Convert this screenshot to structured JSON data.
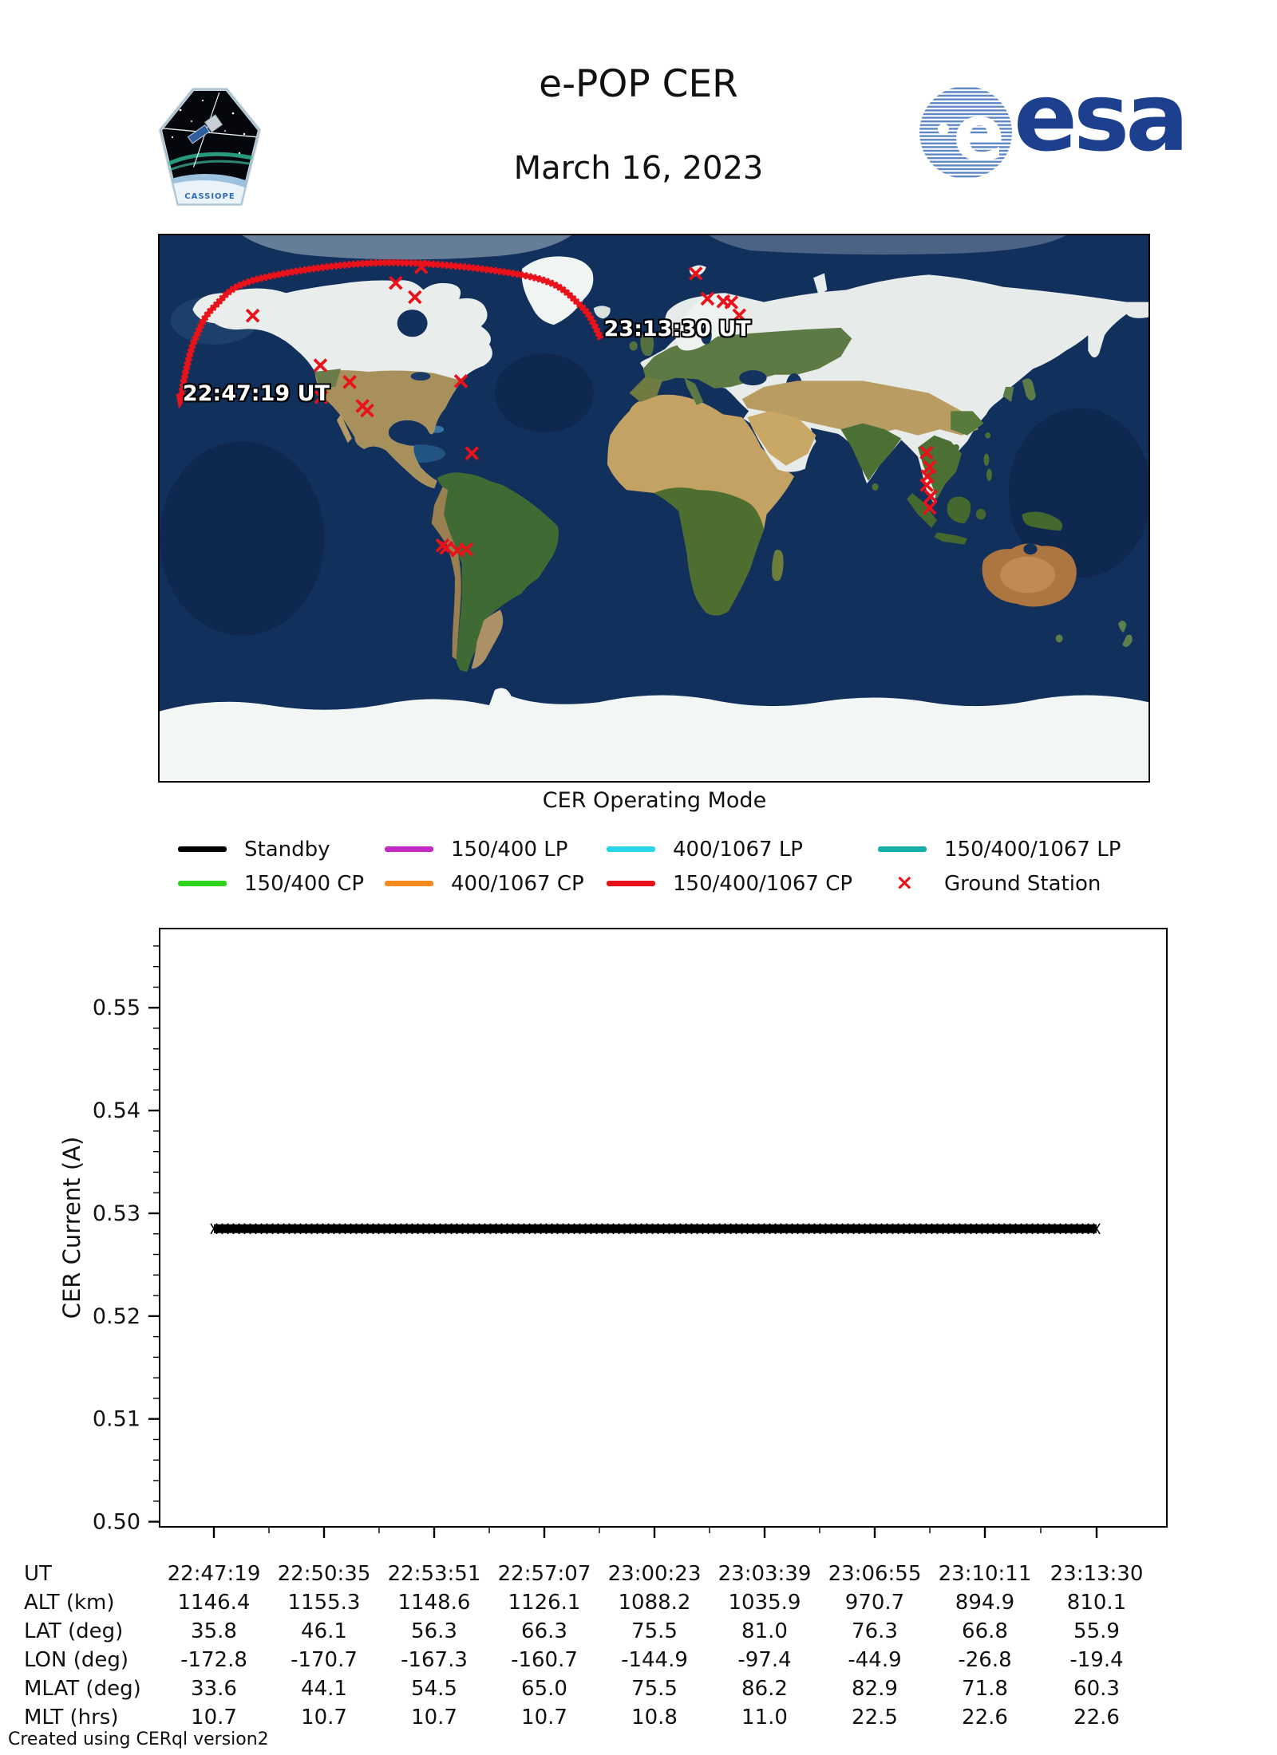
{
  "header": {
    "title": "e-POP CER",
    "date": "March 16, 2023",
    "patch_label": "CASSIOPE",
    "esa_wordmark": "esa"
  },
  "map": {
    "start_time_label": "22:47:19 UT",
    "end_time_label": "23:13:30 UT",
    "track": {
      "color": "#e9121a",
      "points": [
        [
          -172.8,
          35.8
        ],
        [
          -170.7,
          46.1
        ],
        [
          -167.3,
          56.3
        ],
        [
          -160.7,
          66.3
        ],
        [
          -144.9,
          75.5
        ],
        [
          -97.4,
          81.0
        ],
        [
          -44.9,
          76.3
        ],
        [
          -26.8,
          66.8
        ],
        [
          -19.4,
          55.9
        ]
      ]
    },
    "ground_stations": {
      "color": "#e9121a",
      "points": [
        [
          -146.5,
          63.5
        ],
        [
          -121.8,
          47.1
        ],
        [
          -111.1,
          41.6
        ],
        [
          -121.5,
          36.6
        ],
        [
          -106.4,
          33.7
        ],
        [
          -104.7,
          32.2
        ],
        [
          -70.5,
          41.9
        ],
        [
          -66.5,
          18.1
        ],
        [
          -94.3,
          74.3
        ],
        [
          -85.0,
          79.5
        ],
        [
          -87.3,
          69.6
        ],
        [
          -77.2,
          -12.3
        ],
        [
          -75.8,
          -13.1
        ],
        [
          -71.7,
          -13.9
        ],
        [
          -68.5,
          -13.6
        ],
        [
          15.2,
          77.4
        ],
        [
          19.5,
          69.1
        ],
        [
          25.3,
          68.2
        ],
        [
          28.2,
          67.9
        ],
        [
          31.1,
          63.6
        ],
        [
          99.5,
          18.3
        ],
        [
          100.6,
          13.6
        ],
        [
          99.8,
          10.5
        ],
        [
          99.5,
          7.6
        ],
        [
          101.0,
          3.9
        ],
        [
          100.6,
          0.1
        ]
      ]
    }
  },
  "legend": {
    "title": "CER Operating Mode",
    "items": [
      {
        "label": "Standby",
        "color": "#000000",
        "type": "line"
      },
      {
        "label": "150/400 LP",
        "color": "#c32ac3",
        "type": "line"
      },
      {
        "label": "400/1067 LP",
        "color": "#2ad5e8",
        "type": "line"
      },
      {
        "label": "150/400/1067 LP",
        "color": "#16afa8",
        "type": "line"
      },
      {
        "label": "150/400 CP",
        "color": "#2ed31b",
        "type": "line"
      },
      {
        "label": "400/1067 CP",
        "color": "#f6891e",
        "type": "line"
      },
      {
        "label": "150/400/1067 CP",
        "color": "#e9121a",
        "type": "line"
      },
      {
        "label": "Ground Station",
        "color": "#e9121a",
        "type": "marker"
      }
    ]
  },
  "chart_data": {
    "type": "scatter",
    "marker": "x",
    "title": "",
    "xlabel": "",
    "ylabel": "CER Current (A)",
    "ylim": [
      0.4995,
      0.5577
    ],
    "yticks": [
      "0.50",
      "0.51",
      "0.52",
      "0.53",
      "0.54",
      "0.55"
    ],
    "ytick_values": [
      0.5,
      0.51,
      0.52,
      0.53,
      0.54,
      0.55
    ],
    "minor_y_step": 0.002,
    "grid": false,
    "x_ticks": [
      "22:47:19",
      "22:50:35",
      "22:53:51",
      "22:57:07",
      "23:00:23",
      "23:03:39",
      "23:06:55",
      "23:10:11",
      "23:13:30"
    ],
    "series": [
      {
        "name": "CER Current",
        "color": "#000000",
        "x_start": "22:47:19",
        "x_end": "23:13:30",
        "y_constant": 0.5285
      }
    ]
  },
  "table": {
    "row_labels": [
      "UT",
      "ALT (km)",
      "LAT (deg)",
      "LON (deg)",
      "MLAT (deg)",
      "MLT (hrs)"
    ],
    "rows": [
      [
        "22:47:19",
        "22:50:35",
        "22:53:51",
        "22:57:07",
        "23:00:23",
        "23:03:39",
        "23:06:55",
        "23:10:11",
        "23:13:30"
      ],
      [
        "1146.4",
        "1155.3",
        "1148.6",
        "1126.1",
        "1088.2",
        "1035.9",
        "970.7",
        "894.9",
        "810.1"
      ],
      [
        "35.8",
        "46.1",
        "56.3",
        "66.3",
        "75.5",
        "81.0",
        "76.3",
        "66.8",
        "55.9"
      ],
      [
        "-172.8",
        "-170.7",
        "-167.3",
        "-160.7",
        "-144.9",
        "-97.4",
        "-44.9",
        "-26.8",
        "-19.4"
      ],
      [
        "33.6",
        "44.1",
        "54.5",
        "65.0",
        "75.5",
        "86.2",
        "82.9",
        "71.8",
        "60.3"
      ],
      [
        "10.7",
        "10.7",
        "10.7",
        "10.7",
        "10.8",
        "11.0",
        "22.5",
        "22.6",
        "22.6"
      ]
    ]
  },
  "footer": "Created using CERql version2"
}
